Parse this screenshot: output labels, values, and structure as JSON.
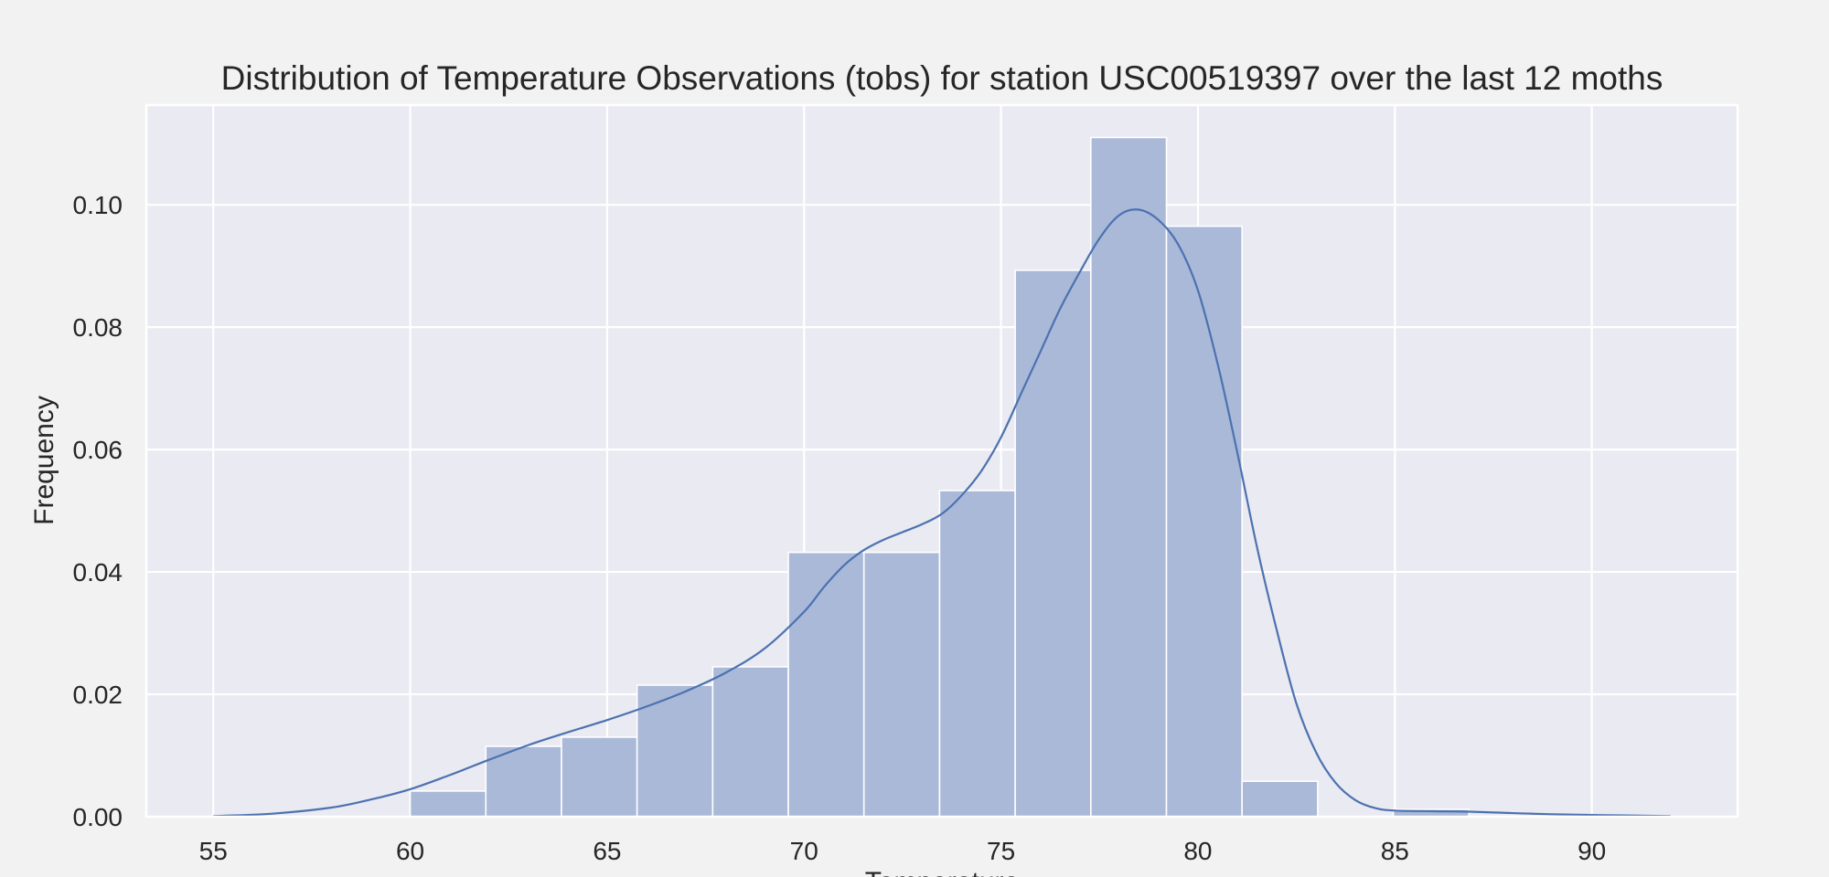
{
  "chart_data": {
    "type": "bar",
    "subtype": "histogram with density curve",
    "title": "Distribution of Temperature Observations (tobs) for station USC00519397 over the last 12 moths",
    "xlabel": "Temperature",
    "ylabel": "Frequency",
    "xlim": [
      53.3,
      93.7
    ],
    "ylim": [
      0,
      0.1163
    ],
    "xticks": [
      "55",
      "60",
      "65",
      "70",
      "75",
      "80",
      "85",
      "90"
    ],
    "yticks": [
      "0.00",
      "0.02",
      "0.04",
      "0.06",
      "0.08",
      "0.10"
    ],
    "grid": true,
    "colors": {
      "background": "#f2f2f2",
      "plot_area": "#eaeaf2",
      "bars": "#aab9d8",
      "density_line": "#4c72b0",
      "grid": "#ffffff"
    },
    "bins": [
      {
        "x0": 60.0,
        "x1": 61.92,
        "y": 0.0042
      },
      {
        "x0": 61.92,
        "x1": 63.84,
        "y": 0.0115
      },
      {
        "x0": 63.84,
        "x1": 65.76,
        "y": 0.013
      },
      {
        "x0": 65.76,
        "x1": 67.68,
        "y": 0.0215
      },
      {
        "x0": 67.68,
        "x1": 69.6,
        "y": 0.0245
      },
      {
        "x0": 69.6,
        "x1": 71.52,
        "y": 0.0432
      },
      {
        "x0": 71.52,
        "x1": 73.44,
        "y": 0.0432
      },
      {
        "x0": 73.44,
        "x1": 75.36,
        "y": 0.0533
      },
      {
        "x0": 75.36,
        "x1": 77.28,
        "y": 0.0893
      },
      {
        "x0": 77.28,
        "x1": 79.2,
        "y": 0.111
      },
      {
        "x0": 79.2,
        "x1": 81.12,
        "y": 0.0965
      },
      {
        "x0": 81.12,
        "x1": 83.04,
        "y": 0.0058
      },
      {
        "x0": 83.04,
        "x1": 84.96,
        "y": 0.0
      },
      {
        "x0": 84.96,
        "x1": 86.88,
        "y": 0.0012
      }
    ],
    "density": {
      "x": [
        55.0,
        56.5,
        58.0,
        59.0,
        60.0,
        61.0,
        62.0,
        63.0,
        64.0,
        65.0,
        66.0,
        67.0,
        68.0,
        69.0,
        70.0,
        70.5,
        71.0,
        71.5,
        72.0,
        72.5,
        73.0,
        73.5,
        74.0,
        74.5,
        75.0,
        75.5,
        76.0,
        76.5,
        77.0,
        77.5,
        78.0,
        78.5,
        79.0,
        79.5,
        80.0,
        80.5,
        81.0,
        81.5,
        82.0,
        82.5,
        83.0,
        83.5,
        84.0,
        84.5,
        85.0,
        86.0,
        87.0,
        89.0,
        92.0
      ],
      "y": [
        0.0001,
        0.0005,
        0.0015,
        0.0028,
        0.0045,
        0.0068,
        0.0093,
        0.0117,
        0.0138,
        0.0158,
        0.018,
        0.0205,
        0.0235,
        0.0275,
        0.0335,
        0.0375,
        0.041,
        0.0435,
        0.0452,
        0.0465,
        0.0478,
        0.0495,
        0.0525,
        0.0565,
        0.062,
        0.069,
        0.076,
        0.083,
        0.089,
        0.0945,
        0.0983,
        0.0992,
        0.0975,
        0.0935,
        0.086,
        0.074,
        0.0595,
        0.044,
        0.0305,
        0.0185,
        0.0105,
        0.0055,
        0.0027,
        0.0014,
        0.001,
        0.0009,
        0.0008,
        0.0004,
        0.0001
      ]
    }
  }
}
